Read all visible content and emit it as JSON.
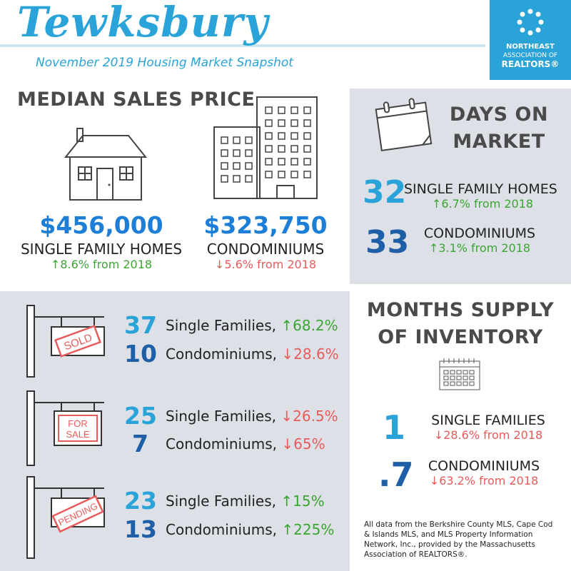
{
  "header": {
    "town": "Tewksbury",
    "subtitle": "November 2019 Housing Market Snapshot",
    "logo_lines": [
      "NORTHEAST",
      "ASSOCIATION OF",
      "REALTORS®"
    ],
    "logo_color": "#29a3d8"
  },
  "median_sales_price": {
    "heading": "MEDIAN SALES PRICE",
    "single_family": {
      "value": "$456,000",
      "label": "SINGLE FAMILY HOMES",
      "arrow": "↑",
      "change": "8.6% from 2018"
    },
    "condo": {
      "value": "$323,750",
      "label": "CONDOMINIUMS",
      "arrow": "↓",
      "change": "5.6% from 2018"
    }
  },
  "days_on_market": {
    "heading_lines": [
      "DAYS ON",
      "MARKET"
    ],
    "single_family": {
      "value": "32",
      "label": "SINGLE FAMILY HOMES",
      "arrow": "↑",
      "change": "6.7% from 2018"
    },
    "condo": {
      "value": "33",
      "label": "CONDOMINIUMS",
      "arrow": "↑",
      "change": "3.1% from 2018"
    }
  },
  "sales": {
    "sold": {
      "sign": "SOLD",
      "rows": [
        {
          "value": "37",
          "label": "Single Families,",
          "arrow": "↑",
          "change": "68.2%"
        },
        {
          "value": "10",
          "label": "Condominiums,",
          "arrow": "↓",
          "change": "28.6%"
        }
      ]
    },
    "for_sale": {
      "sign_lines": [
        "FOR",
        "SALE"
      ],
      "rows": [
        {
          "value": "25",
          "label": "Single Families,",
          "arrow": "↓",
          "change": "26.5%"
        },
        {
          "value": "7",
          "label": "Condominiums,",
          "arrow": "↓",
          "change": "65%"
        }
      ]
    },
    "pending": {
      "sign": "PENDING",
      "rows": [
        {
          "value": "23",
          "label": "Single Families,",
          "arrow": "↑",
          "change": "15%"
        },
        {
          "value": "13",
          "label": "Condominiums,",
          "arrow": "↑",
          "change": "225%"
        }
      ]
    }
  },
  "months_supply": {
    "heading_lines": [
      "MONTHS SUPPLY",
      "OF INVENTORY"
    ],
    "single_family": {
      "value": "1",
      "label": "SINGLE FAMILIES",
      "arrow": "↓",
      "change": "28.6% from 2018"
    },
    "condo": {
      "value": ".7",
      "label": "CONDOMINIUMS",
      "arrow": "↓",
      "change": "63.2% from 2018"
    }
  },
  "footnote": "All data from the Berkshire County MLS, Cape Cod & Islands MLS, and MLS Property Information Network, Inc., provided by the Massachusetts Association of REALTORS®.",
  "colors": {
    "up": "#3aa532",
    "down": "#e85b5b",
    "blue_dark": "#1f5fa8",
    "blue_light": "#29a3d8",
    "panel": "#dde1e7"
  }
}
